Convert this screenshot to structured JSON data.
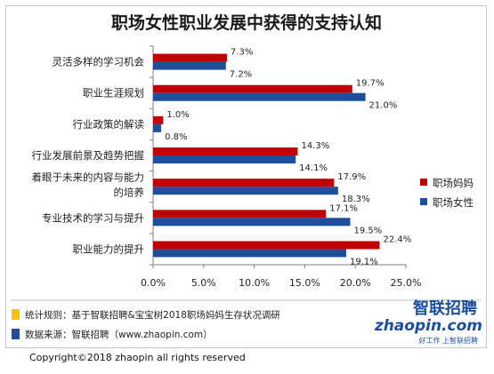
{
  "chart_data": {
    "type": "bar",
    "orientation": "horizontal",
    "title": "职场女性职业发展中获得的支持认知",
    "categories": [
      [
        "灵活多样的学习机会"
      ],
      [
        "职业生涯规划"
      ],
      [
        "行业政策的解读"
      ],
      [
        "行业发展前景及趋势把握"
      ],
      [
        "着眼于未来的内容与能力",
        "的培养"
      ],
      [
        "专业技术的学习与提升"
      ],
      [
        "职业能力的提升"
      ]
    ],
    "series": [
      {
        "name": "职场妈妈",
        "color": "#c00000",
        "values": [
          7.3,
          19.7,
          1.0,
          14.3,
          17.9,
          17.1,
          22.4
        ],
        "labels": [
          "7.3%",
          "19.7%",
          "1.0%",
          "14.3%",
          "17.9%",
          "17.1%",
          "22.4%"
        ]
      },
      {
        "name": "职场女性",
        "color": "#1f4e9b",
        "values": [
          7.2,
          21.0,
          0.8,
          14.1,
          18.3,
          19.5,
          19.1
        ],
        "labels": [
          "7.2%",
          "21.0%",
          "0.8%",
          "14.1%",
          "18.3%",
          "19.5%",
          "19.1%"
        ]
      }
    ],
    "x_ticks": [
      "0.0%",
      "5.0%",
      "10.0%",
      "15.0%",
      "20.0%",
      "25.0%"
    ],
    "xlim": [
      0,
      25
    ],
    "grid": false,
    "legend_position": "right"
  },
  "footer": {
    "rule_text": "统计规则：基于智联招聘&宝宝树2018职场妈妈生存状况调研",
    "rule_marker_color": "#f5c400",
    "source_text": "数据来源：智联招聘（www.zhaopin.com）",
    "source_marker_color": "#1f4e9b"
  },
  "logo": {
    "cn": "智联招聘",
    "en": "zhaopin.com",
    "slogan": "好工作 上智联招聘"
  },
  "copyright": "Copyright©2018 zhaopin all rights reserved"
}
